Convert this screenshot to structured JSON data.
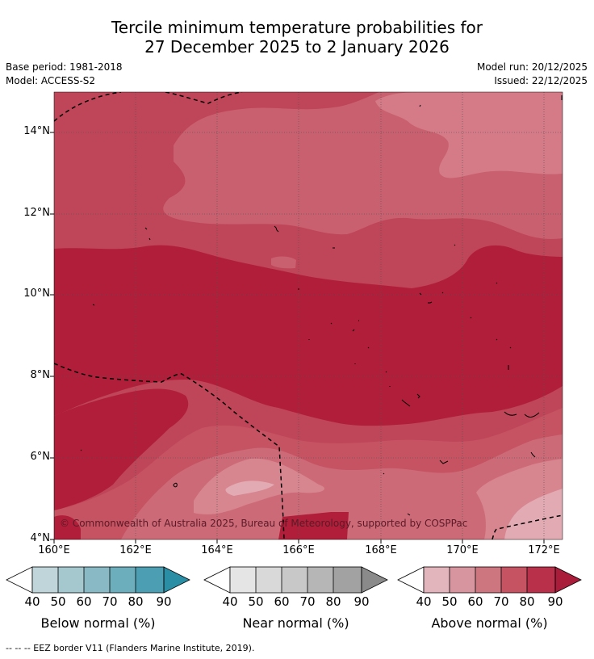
{
  "title": {
    "line1": "Tercile minimum temperature probabilities for",
    "line2": "27 December 2025 to 2 January 2026"
  },
  "meta": {
    "base_period": "Base period: 1981-2018",
    "model": "Model: ACCESS-S2",
    "model_run": "Model run: 20/12/2025",
    "issued": "Issued: 22/12/2025"
  },
  "map": {
    "lat_labels": [
      "14°N",
      "12°N",
      "10°N",
      "8°N",
      "6°N",
      "4°N"
    ],
    "lon_labels": [
      "160°E",
      "162°E",
      "164°E",
      "166°E",
      "168°E",
      "170°E",
      "172°E"
    ],
    "copyright": "© Commonwealth of Australia 2025, Bureau of Meteorology, supported by COSPPac"
  },
  "colorbars": [
    {
      "id": "below",
      "title": "Below normal (%)",
      "ticks": [
        "40",
        "50",
        "60",
        "70",
        "80",
        "90"
      ],
      "colors": [
        "#bfd5da",
        "#a5c8cf",
        "#88b9c5",
        "#6daebd",
        "#4c9fb2",
        "#2a8ea5"
      ]
    },
    {
      "id": "near",
      "title": "Near normal (%)",
      "ticks": [
        "40",
        "50",
        "60",
        "70",
        "80",
        "90"
      ],
      "colors": [
        "#e5e5e5",
        "#d9d9d9",
        "#c8c8c8",
        "#b6b6b6",
        "#a2a2a2",
        "#8a8a8a"
      ]
    },
    {
      "id": "above",
      "title": "Above normal (%)",
      "ticks": [
        "40",
        "50",
        "60",
        "70",
        "80",
        "90"
      ],
      "colors": [
        "#e2b5bd",
        "#d7969f",
        "#cd7680",
        "#c55362",
        "#b8304a",
        "#a91c3a"
      ]
    }
  ],
  "footnote": "--  --  -- EEZ border V11 (Flanders Marine Institute, 2019)."
}
